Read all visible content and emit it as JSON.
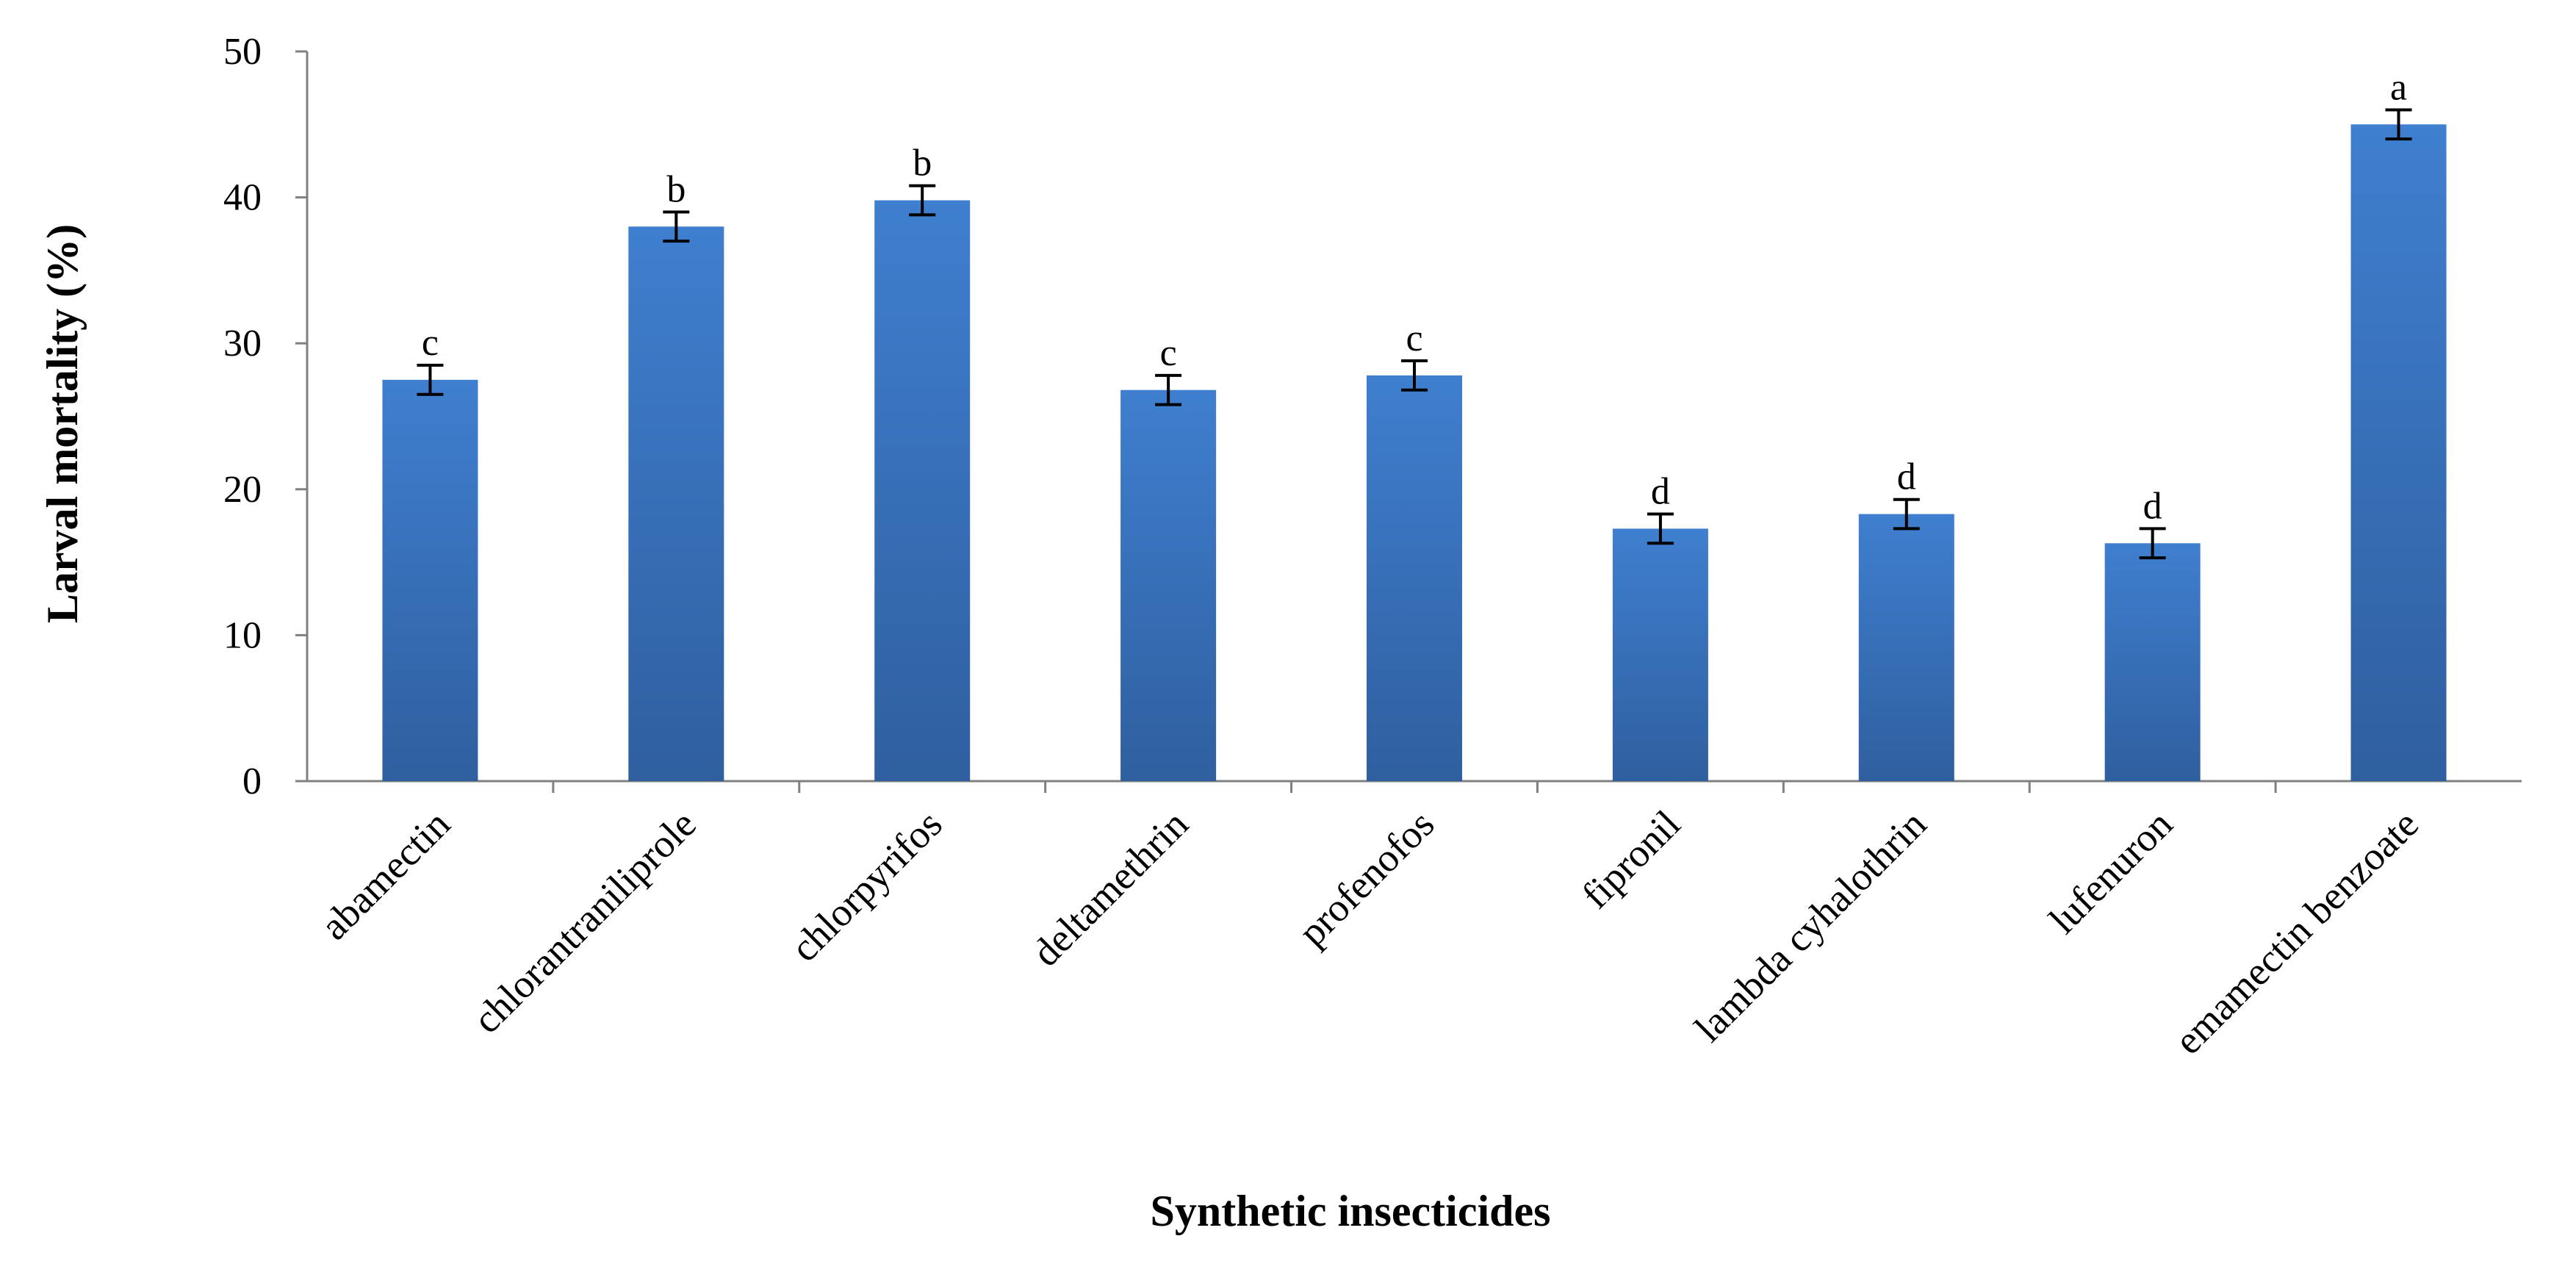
{
  "chart_data": {
    "type": "bar",
    "title": "",
    "xlabel": "Synthetic insecticides",
    "ylabel": "Larval mortality (%)",
    "ylim": [
      0,
      50
    ],
    "yticks": [
      0,
      10,
      20,
      30,
      40,
      50
    ],
    "grid": false,
    "legend": "none",
    "colors": {
      "bar_top": "#3f7fcf",
      "bar_bottom": "#2f5f9f",
      "axis": "#808080",
      "error": "#000000"
    },
    "categories": [
      "abamectin",
      "chlorantraniliprole",
      "chlorpyrifos",
      "deltamethrin",
      "profenofos",
      "fipronil",
      "lambda cyhalothrin",
      "lufenuron",
      "emamectin benzoate"
    ],
    "values": [
      27.5,
      38.0,
      39.8,
      26.8,
      27.8,
      17.3,
      18.3,
      16.3,
      45.0
    ],
    "errors": [
      1.0,
      1.0,
      1.0,
      1.0,
      1.0,
      1.0,
      1.0,
      1.0,
      1.0
    ],
    "significance": [
      "c",
      "b",
      "b",
      "c",
      "c",
      "d",
      "d",
      "d",
      "a"
    ]
  }
}
